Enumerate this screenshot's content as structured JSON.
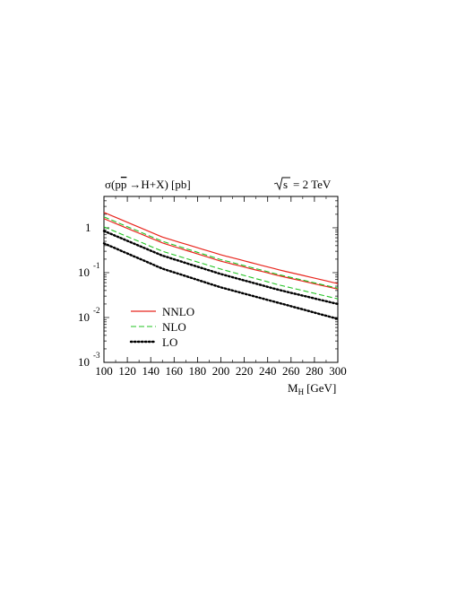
{
  "chart_data": {
    "type": "line",
    "title_left": "σ(pp → H+X) [pb]",
    "title_left_parts": {
      "sigma": "σ(p",
      "pbar": "p",
      "arrow": "→",
      "rest": "H+X) [pb]"
    },
    "title_right": "= 2 TeV",
    "title_right_sqrt_arg": "s",
    "xlabel": "M",
    "xlabel_sub": "H",
    "xlabel_unit": "[GeV]",
    "xlim": [
      100,
      300
    ],
    "ylim": [
      0.001,
      5
    ],
    "yscale": "log",
    "x_ticks": [
      100,
      120,
      140,
      160,
      180,
      200,
      220,
      240,
      260,
      280,
      300
    ],
    "x_tick_labels": [
      "100",
      "120",
      "140",
      "160",
      "180",
      "200",
      "220",
      "240",
      "260",
      "280",
      "300"
    ],
    "y_tick_labels": [
      {
        "value": 1,
        "base": "1",
        "exp": ""
      },
      {
        "value": 0.1,
        "base": "10",
        "exp": "-1"
      },
      {
        "value": 0.01,
        "base": "10",
        "exp": "-2"
      },
      {
        "value": 0.001,
        "base": "10",
        "exp": "-3"
      }
    ],
    "legend_position": "bottom-left",
    "series": [
      {
        "name": "NNLO",
        "band": "upper",
        "color": "#e8261e",
        "dash": "solid",
        "x": [
          100,
          150,
          200,
          250,
          300
        ],
        "values": [
          2.2,
          0.62,
          0.25,
          0.115,
          0.057
        ]
      },
      {
        "name": "",
        "band": "lower",
        "color": "#e8261e",
        "dash": "solid",
        "x": [
          100,
          150,
          200,
          250,
          300
        ],
        "values": [
          1.6,
          0.46,
          0.18,
          0.085,
          0.043
        ]
      },
      {
        "name": "NLO",
        "band": "upper",
        "color": "#22c322",
        "dash": "dashed",
        "x": [
          100,
          150,
          200,
          250,
          300
        ],
        "values": [
          1.75,
          0.5,
          0.195,
          0.09,
          0.045
        ]
      },
      {
        "name": "",
        "band": "lower",
        "color": "#22c322",
        "dash": "dashed",
        "x": [
          100,
          150,
          200,
          250,
          300
        ],
        "values": [
          1.05,
          0.3,
          0.12,
          0.053,
          0.026
        ]
      },
      {
        "name": "LO",
        "band": "upper",
        "color": "#000000",
        "dash": "dotted",
        "x": [
          100,
          150,
          200,
          250,
          300
        ],
        "values": [
          0.85,
          0.24,
          0.093,
          0.041,
          0.02
        ]
      },
      {
        "name": "",
        "band": "lower",
        "color": "#000000",
        "dash": "dotted",
        "x": [
          100,
          150,
          200,
          250,
          300
        ],
        "values": [
          0.45,
          0.123,
          0.047,
          0.021,
          0.0093
        ]
      }
    ],
    "legend": [
      {
        "label": "NNLO",
        "color": "#e8261e",
        "dash": "solid"
      },
      {
        "label": "NLO",
        "color": "#22c322",
        "dash": "dashed"
      },
      {
        "label": "LO",
        "color": "#000000",
        "dash": "dotted"
      }
    ]
  }
}
